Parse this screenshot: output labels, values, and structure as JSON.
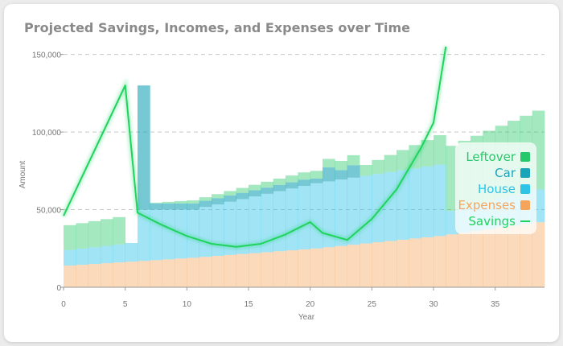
{
  "chart_data": {
    "type": "area",
    "title": "Projected Savings, Incomes, and Expenses over Time",
    "xlabel": "Year",
    "ylabel": "Amount",
    "xlim": [
      0,
      39
    ],
    "ylim": [
      0,
      155000
    ],
    "x_ticks": [
      0,
      5,
      10,
      15,
      20,
      25,
      30,
      35
    ],
    "y_ticks": [
      0,
      50000,
      100000,
      150000
    ],
    "y_tick_labels": [
      "0",
      "50,000",
      "100,000",
      "150,000"
    ],
    "grid": "horizontal dashed",
    "legend_position": "right",
    "series": [
      {
        "name": "Expenses",
        "kind": "stacked-area",
        "color": "#f5a45c",
        "x": [
          0,
          10,
          20,
          30,
          39
        ],
        "values": [
          14000,
          19000,
          25000,
          33000,
          43000
        ]
      },
      {
        "name": "House",
        "kind": "stacked-area",
        "color": "#2ec4e8",
        "x": [
          0,
          5,
          6,
          10,
          20,
          30,
          31,
          39
        ],
        "values": [
          10000,
          12000,
          33000,
          31000,
          42000,
          46000,
          15000,
          22000
        ]
      },
      {
        "name": "Car",
        "kind": "stacked-area",
        "color": "#1aa4b8",
        "x": [
          6,
          7,
          20,
          21,
          22,
          23,
          24
        ],
        "values": [
          80000,
          4000,
          3000,
          9000,
          6000,
          8000,
          0
        ]
      },
      {
        "name": "Leftover",
        "kind": "stacked-area",
        "color": "#26c96a",
        "x": [
          0,
          5,
          6,
          10,
          20,
          24,
          30,
          31,
          39
        ],
        "values": [
          16000,
          18000,
          0,
          2000,
          5000,
          7000,
          19000,
          42000,
          52000
        ]
      },
      {
        "name": "Savings",
        "kind": "line",
        "color": "#1ed45f",
        "x": [
          0,
          5,
          6,
          8,
          10,
          12,
          14,
          16,
          18,
          20,
          21,
          23,
          25,
          27,
          29,
          30,
          31
        ],
        "values": [
          46000,
          130000,
          48000,
          40000,
          33000,
          28000,
          26000,
          28000,
          34000,
          42000,
          35000,
          30500,
          44000,
          63000,
          90000,
          106000,
          155000
        ]
      }
    ]
  },
  "legend": [
    {
      "label": "Leftover",
      "color": "#26c96a",
      "icon": "square"
    },
    {
      "label": "Car",
      "color": "#1aa4b8",
      "icon": "square"
    },
    {
      "label": "House",
      "color": "#2ec4e8",
      "icon": "square"
    },
    {
      "label": "Expenses",
      "color": "#f5a45c",
      "icon": "square"
    },
    {
      "label": "Savings",
      "color": "#1ed45f",
      "icon": "line"
    }
  ]
}
